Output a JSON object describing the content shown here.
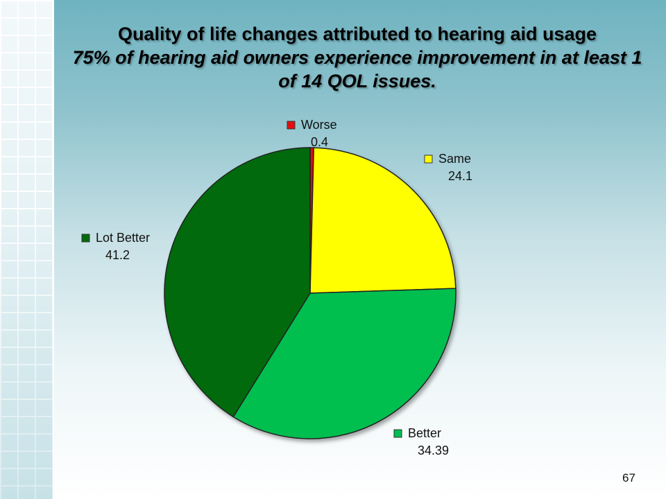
{
  "slide": {
    "title_line1": "Quality of life changes attributed to hearing aid usage",
    "title_line2": "75% of hearing aid owners experience improvement in at least 1 of 14 QOL issues.",
    "page_number": "67"
  },
  "chart_data": {
    "type": "pie",
    "categories": [
      "Worse",
      "Same",
      "Better",
      "Lot Better"
    ],
    "values": [
      0.4,
      24.1,
      34.39,
      41.2
    ],
    "value_labels": [
      "0.4",
      "24.1",
      "34.39",
      "41.2"
    ],
    "colors": [
      "#e01010",
      "#ffff00",
      "#00bf50",
      "#056a0f"
    ],
    "start_angle_degrees": 0,
    "direction": "clockwise",
    "legend": "labels beside slices"
  }
}
